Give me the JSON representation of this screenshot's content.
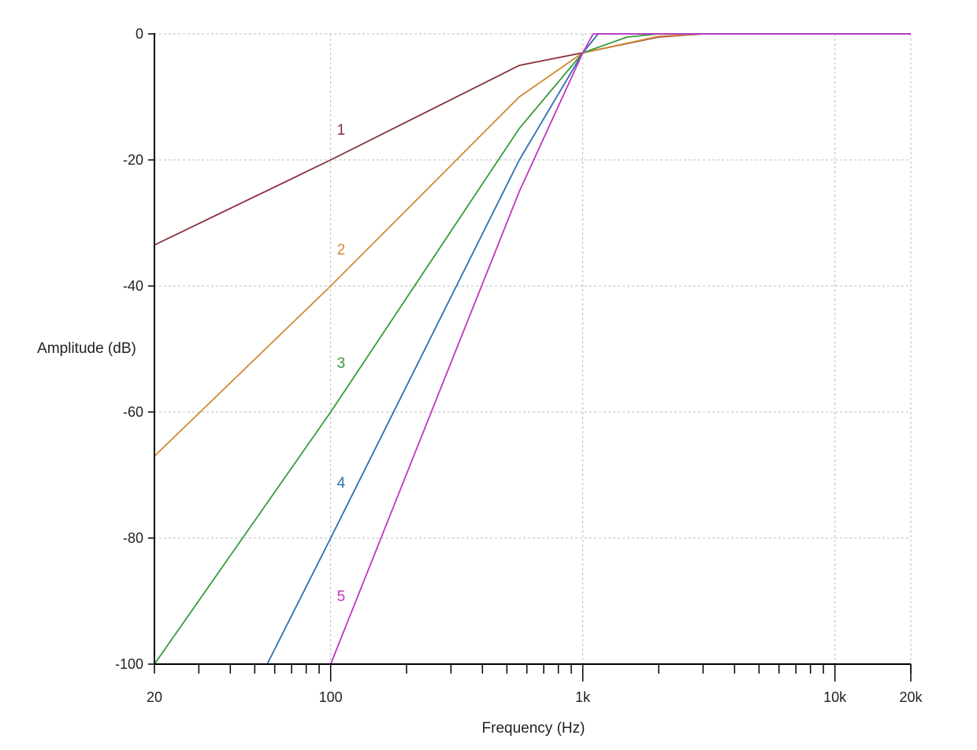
{
  "chart_data": {
    "type": "line",
    "xlabel": "Frequency (Hz)",
    "ylabel": "Amplitude (dB)",
    "x_scale": "log",
    "xlim": [
      20,
      20000
    ],
    "ylim": [
      -100,
      0
    ],
    "grid": true,
    "x_ticks": [
      {
        "value": 20,
        "label": "20"
      },
      {
        "value": 100,
        "label": "100"
      },
      {
        "value": 1000,
        "label": "1k"
      },
      {
        "value": 10000,
        "label": "10k"
      },
      {
        "value": 20000,
        "label": "20k"
      }
    ],
    "y_ticks": [
      {
        "value": 0,
        "label": "0"
      },
      {
        "value": -20,
        "label": "-20"
      },
      {
        "value": -40,
        "label": "-40"
      },
      {
        "value": -60,
        "label": "-60"
      },
      {
        "value": -80,
        "label": "-80"
      },
      {
        "value": -100,
        "label": "-100"
      }
    ],
    "series": [
      {
        "label": "1",
        "color": "#8b2e3a",
        "label_at": [
          110,
          -16
        ],
        "points": [
          [
            20,
            -33.5
          ],
          [
            100,
            -20
          ],
          [
            560,
            -5
          ],
          [
            1000,
            -3
          ],
          [
            2000,
            -0.5
          ],
          [
            3000,
            0
          ],
          [
            20000,
            0
          ]
        ]
      },
      {
        "label": "2",
        "color": "#d08a35",
        "label_at": [
          110,
          -35
        ],
        "points": [
          [
            20,
            -67
          ],
          [
            100,
            -40
          ],
          [
            560,
            -10
          ],
          [
            1000,
            -3
          ],
          [
            2000,
            -0.4
          ],
          [
            3000,
            0
          ],
          [
            20000,
            0
          ]
        ]
      },
      {
        "label": "3",
        "color": "#3a9a3a",
        "label_at": [
          110,
          -53
        ],
        "points": [
          [
            20,
            -100
          ],
          [
            100,
            -60
          ],
          [
            560,
            -15
          ],
          [
            1000,
            -3
          ],
          [
            1500,
            -0.5
          ],
          [
            2000,
            0
          ],
          [
            20000,
            0
          ]
        ]
      },
      {
        "label": "4",
        "color": "#2f6fae",
        "label_at": [
          110,
          -72
        ],
        "points": [
          [
            56,
            -100
          ],
          [
            100,
            -80
          ],
          [
            560,
            -20
          ],
          [
            1000,
            -3
          ],
          [
            1150,
            0
          ],
          [
            20000,
            0
          ]
        ]
      },
      {
        "label": "5",
        "color": "#c235c2",
        "label_at": [
          110,
          -90
        ],
        "points": [
          [
            100,
            -100
          ],
          [
            560,
            -25
          ],
          [
            1000,
            -3
          ],
          [
            1100,
            0
          ],
          [
            20000,
            0
          ]
        ]
      }
    ]
  }
}
